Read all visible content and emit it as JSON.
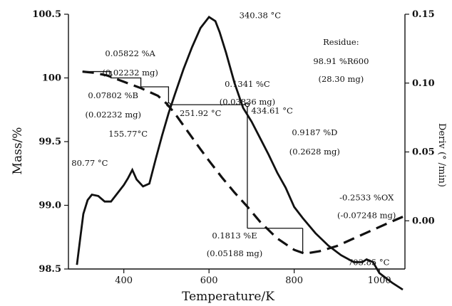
{
  "chart_data": {
    "type": "line",
    "xlabel": "Temperature/K",
    "ylabel": "Mass/%",
    "y2label": "Deriv (° /min)",
    "xlim": [
      270,
      1060
    ],
    "ylim": [
      98.5,
      100.5
    ],
    "y2lim": [
      -0.035,
      0.15
    ],
    "x_ticks": [
      400,
      600,
      800,
      1000
    ],
    "y_ticks": [
      "98.5",
      "99.0",
      "99.5",
      "100",
      "100.5"
    ],
    "y_tick_values": [
      98.5,
      99.0,
      99.5,
      100.0,
      100.5
    ],
    "y2_ticks": [
      "0.00",
      "0.05",
      "0.10",
      "0.15"
    ],
    "y2_tick_values": [
      0.0,
      0.05,
      0.1,
      0.15
    ],
    "series": [
      {
        "style": "dashed",
        "axis": "left",
        "x": [
          303,
          330,
          360,
          400,
          440,
          480,
          500,
          520,
          550,
          580,
          600,
          630,
          660,
          690,
          720,
          760,
          800,
          825,
          860,
          900,
          940,
          980,
          1020,
          1055
        ],
        "y": [
          100.05,
          100.04,
          100.02,
          99.97,
          99.92,
          99.86,
          99.8,
          99.72,
          99.58,
          99.44,
          99.35,
          99.22,
          99.1,
          98.99,
          98.87,
          98.74,
          98.65,
          98.62,
          98.64,
          98.68,
          98.74,
          98.8,
          98.86,
          98.91
        ]
      },
      {
        "style": "solid",
        "axis": "right",
        "x": [
          290,
          298,
          305,
          315,
          325,
          340,
          355,
          370,
          385,
          400,
          410,
          420,
          430,
          445,
          460,
          475,
          490,
          505,
          520,
          540,
          560,
          580,
          600,
          615,
          625,
          640,
          660,
          680,
          700,
          720,
          740,
          760,
          780,
          800,
          820,
          850,
          880,
          910,
          940,
          960,
          970,
          985,
          1000,
          1030,
          1055
        ],
        "y": [
          -0.032,
          -0.012,
          0.005,
          0.015,
          0.019,
          0.018,
          0.014,
          0.014,
          0.02,
          0.026,
          0.031,
          0.037,
          0.03,
          0.025,
          0.027,
          0.045,
          0.062,
          0.078,
          0.092,
          0.11,
          0.126,
          0.14,
          0.148,
          0.145,
          0.137,
          0.122,
          0.1,
          0.082,
          0.072,
          0.06,
          0.048,
          0.035,
          0.024,
          0.01,
          0.002,
          -0.009,
          -0.018,
          -0.025,
          -0.03,
          -0.03,
          -0.028,
          -0.03,
          -0.038,
          -0.045,
          -0.05
        ]
      }
    ],
    "annotations": [
      {
        "text": "340.38 °C",
        "x": 720,
        "y": 100.47
      },
      {
        "text": "Residue:",
        "x": 910,
        "y": 100.26
      },
      {
        "text": "98.91 %R600",
        "x": 910,
        "y": 100.11
      },
      {
        "text": "(28.30 mg)",
        "x": 910,
        "y": 99.97
      },
      {
        "text": "0.05822 %A",
        "x": 415,
        "y": 100.17
      },
      {
        "text": "(0.02232 mg)",
        "x": 415,
        "y": 100.02
      },
      {
        "text": "0.1341 %C",
        "x": 690,
        "y": 99.93
      },
      {
        "text": "(0.03836 mg)",
        "x": 690,
        "y": 99.79
      },
      {
        "text": "0.07802 %B",
        "x": 375,
        "y": 99.84
      },
      {
        "text": "(0.02232 mg)",
        "x": 375,
        "y": 99.69
      },
      {
        "text": "251.92 °C",
        "x": 580,
        "y": 99.7
      },
      {
        "text": "434.61 °C",
        "x": 748,
        "y": 99.72
      },
      {
        "text": "155.77°C",
        "x": 410,
        "y": 99.54
      },
      {
        "text": "0.9187 %D",
        "x": 848,
        "y": 99.55
      },
      {
        "text": "(0.2628 mg)",
        "x": 848,
        "y": 99.4
      },
      {
        "text": "80.77 °C",
        "x": 320,
        "y": 99.31
      },
      {
        "text": "-0.2533 %OX",
        "x": 970,
        "y": 99.04
      },
      {
        "text": "(-0.07248 mg)",
        "x": 970,
        "y": 98.9
      },
      {
        "text": "0.1813 %E",
        "x": 660,
        "y": 98.74
      },
      {
        "text": "(0.05188 mg)",
        "x": 660,
        "y": 98.6
      },
      {
        "text": "703.85 °C",
        "x": 975,
        "y": 98.53
      }
    ],
    "step_construct": [
      [
        303,
        100.05
      ],
      [
        370,
        100.05
      ],
      [
        370,
        100.0
      ],
      [
        440,
        100.0
      ],
      [
        440,
        99.93
      ],
      [
        505,
        99.93
      ],
      [
        505,
        99.8
      ]
    ],
    "construct_lines": [
      [
        [
          505,
          99.79
        ],
        [
          690,
          99.79
        ]
      ],
      [
        [
          690,
          99.79
        ],
        [
          690,
          98.82
        ]
      ],
      [
        [
          690,
          98.82
        ],
        [
          820,
          98.82
        ]
      ],
      [
        [
          820,
          98.82
        ],
        [
          820,
          98.62
        ]
      ]
    ],
    "markers": [
      [
        505,
        99.79
      ],
      [
        690,
        99.79
      ]
    ],
    "grid": false,
    "legend": "none"
  }
}
